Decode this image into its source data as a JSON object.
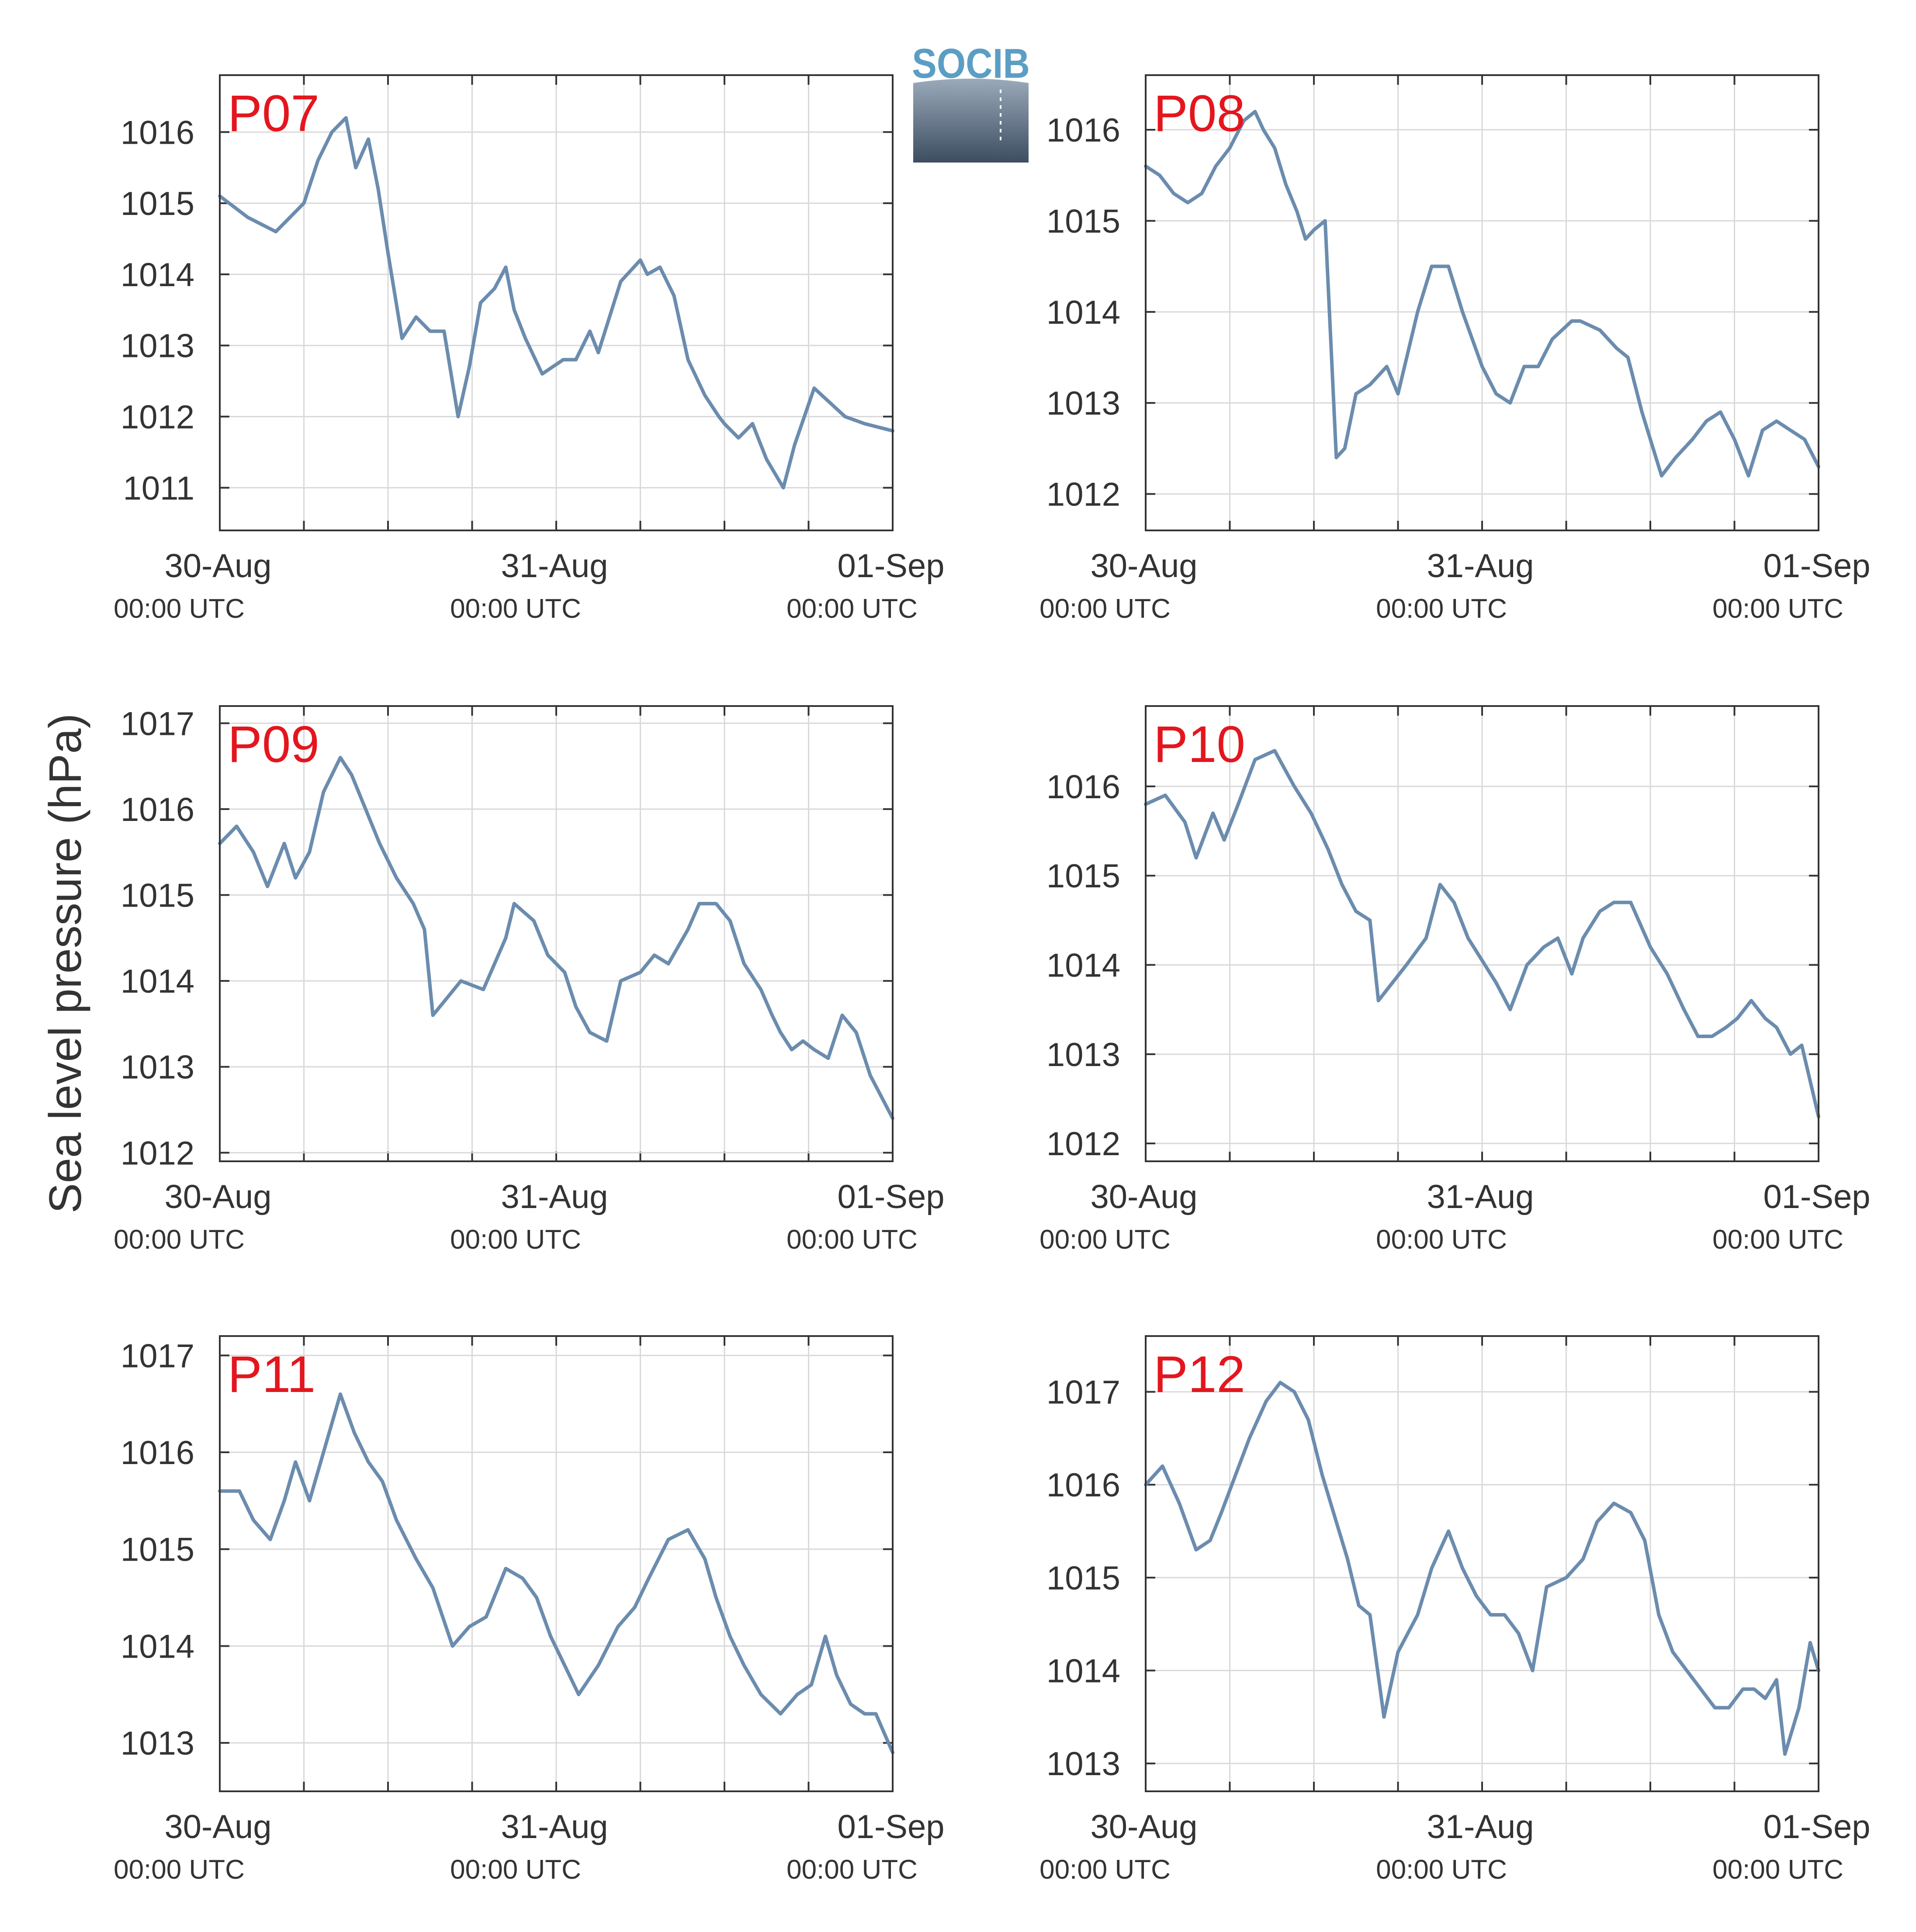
{
  "figure": {
    "ylabel": "Sea level pressure (hPa)",
    "logo_text": "SOCIB",
    "colors": {
      "line": "#6b8cae",
      "panel_label": "#e3161e",
      "grid": "#d9d9d9",
      "axis": "#333333"
    }
  },
  "chart_data": [
    {
      "type": "line",
      "title": "P07",
      "ylabel": "Sea level pressure (hPa)",
      "x_ticks": [
        "30-Aug",
        "31-Aug",
        "01-Sep"
      ],
      "x_tick_sub": [
        "00:00 UTC",
        "00:00 UTC",
        "00:00 UTC"
      ],
      "xlim": [
        0,
        48
      ],
      "ylim": [
        1010.4,
        1016.8
      ],
      "yticks": [
        1011,
        1012,
        1013,
        1014,
        1015,
        1016
      ],
      "x_minor_step": 6,
      "series": [
        {
          "x": [
            0,
            2,
            4,
            6,
            7,
            8,
            9,
            9.7,
            10.6,
            11.3,
            12,
            13,
            14,
            15,
            16,
            17,
            17.8,
            18.6,
            19.6,
            20.4,
            21,
            21.8,
            23,
            24.5,
            25.4,
            26.4,
            27,
            28.6,
            30,
            30.5,
            31.4,
            32.4,
            33.4,
            34.6,
            35.6,
            36,
            37,
            38,
            39,
            40.2,
            41,
            42.4,
            43.5,
            44.6,
            46,
            48
          ],
          "y": [
            1015.1,
            1014.8,
            1014.6,
            1015.0,
            1015.6,
            1016.0,
            1016.2,
            1015.5,
            1015.9,
            1015.2,
            1014.3,
            1013.1,
            1013.4,
            1013.2,
            1013.2,
            1012.0,
            1012.7,
            1013.6,
            1013.8,
            1014.1,
            1013.5,
            1013.1,
            1012.6,
            1012.8,
            1012.8,
            1013.2,
            1012.9,
            1013.9,
            1014.2,
            1014.0,
            1014.1,
            1013.7,
            1012.8,
            1012.3,
            1012.0,
            1011.9,
            1011.7,
            1011.9,
            1011.4,
            1011.0,
            1011.6,
            1012.4,
            1012.2,
            1012.0,
            1011.9,
            1011.8
          ]
        }
      ]
    },
    {
      "type": "line",
      "title": "P08",
      "ylabel": "Sea level pressure (hPa)",
      "x_ticks": [
        "30-Aug",
        "31-Aug",
        "01-Sep"
      ],
      "x_tick_sub": [
        "00:00 UTC",
        "00:00 UTC",
        "00:00 UTC"
      ],
      "xlim": [
        0,
        48
      ],
      "ylim": [
        1011.6,
        1016.6
      ],
      "yticks": [
        1012,
        1013,
        1014,
        1015,
        1016
      ],
      "x_minor_step": 6,
      "series": [
        {
          "x": [
            0,
            1,
            2,
            3,
            4,
            5,
            6,
            7,
            7.8,
            8.4,
            9.2,
            10,
            10.8,
            11.4,
            12,
            12.8,
            13.6,
            14.2,
            15,
            16,
            17.2,
            18,
            19.4,
            20.4,
            21.6,
            22.6,
            24,
            25,
            26,
            27,
            28,
            29,
            30.4,
            31,
            32.4,
            33.6,
            34.4,
            35.4,
            36,
            36.8,
            37.8,
            39,
            40,
            41,
            42,
            43,
            44,
            45,
            46,
            47,
            48
          ],
          "y": [
            1015.6,
            1015.5,
            1015.3,
            1015.2,
            1015.3,
            1015.6,
            1015.8,
            1016.1,
            1016.2,
            1016.0,
            1015.8,
            1015.4,
            1015.1,
            1014.8,
            1014.9,
            1015.0,
            1012.4,
            1012.5,
            1013.1,
            1013.2,
            1013.4,
            1013.1,
            1014.0,
            1014.5,
            1014.5,
            1014.0,
            1013.4,
            1013.1,
            1013.0,
            1013.4,
            1013.4,
            1013.7,
            1013.9,
            1013.9,
            1013.8,
            1013.6,
            1013.5,
            1012.9,
            1012.6,
            1012.2,
            1012.4,
            1012.6,
            1012.8,
            1012.9,
            1012.6,
            1012.2,
            1012.7,
            1012.8,
            1012.7,
            1012.6,
            1012.3
          ]
        }
      ]
    },
    {
      "type": "line",
      "title": "P09",
      "ylabel": "Sea level pressure (hPa)",
      "x_ticks": [
        "30-Aug",
        "31-Aug",
        "01-Sep"
      ],
      "x_tick_sub": [
        "00:00 UTC",
        "00:00 UTC",
        "00:00 UTC"
      ],
      "xlim": [
        0,
        48
      ],
      "ylim": [
        1011.9,
        1017.2
      ],
      "yticks": [
        1012,
        1013,
        1014,
        1015,
        1016,
        1017
      ],
      "x_minor_step": 6,
      "series": [
        {
          "x": [
            0,
            1.2,
            2.4,
            3.4,
            4.6,
            5.4,
            6.4,
            7.4,
            8.6,
            9.4,
            10.4,
            11.4,
            12.6,
            13.8,
            14.6,
            15.2,
            16.2,
            17.2,
            18.8,
            20.4,
            21,
            22.4,
            23.4,
            24.6,
            25.4,
            26.4,
            27.6,
            28.6,
            30,
            31,
            32,
            33.4,
            34.2,
            35.4,
            36.4,
            37.4,
            38.6,
            39.4,
            40,
            40.8,
            41.6,
            42.4,
            43.4,
            44.4,
            45.4,
            46.4,
            48
          ],
          "y": [
            1015.6,
            1015.8,
            1015.5,
            1015.1,
            1015.6,
            1015.2,
            1015.5,
            1016.2,
            1016.6,
            1016.4,
            1016.0,
            1015.6,
            1015.2,
            1014.9,
            1014.6,
            1013.6,
            1013.8,
            1014.0,
            1013.9,
            1014.5,
            1014.9,
            1014.7,
            1014.3,
            1014.1,
            1013.7,
            1013.4,
            1013.3,
            1014.0,
            1014.1,
            1014.3,
            1014.2,
            1014.6,
            1014.9,
            1014.9,
            1014.7,
            1014.2,
            1013.9,
            1013.6,
            1013.4,
            1013.2,
            1013.3,
            1013.2,
            1013.1,
            1013.6,
            1013.4,
            1012.9,
            1012.4
          ]
        }
      ]
    },
    {
      "type": "line",
      "title": "P10",
      "ylabel": "Sea level pressure (hPa)",
      "x_ticks": [
        "30-Aug",
        "31-Aug",
        "01-Sep"
      ],
      "x_tick_sub": [
        "00:00 UTC",
        "00:00 UTC",
        "00:00 UTC"
      ],
      "xlim": [
        0,
        48
      ],
      "ylim": [
        1011.8,
        1016.9
      ],
      "yticks": [
        1012,
        1013,
        1014,
        1015,
        1016
      ],
      "x_minor_step": 6,
      "series": [
        {
          "x": [
            0,
            1.4,
            2.8,
            3.6,
            4.8,
            5.6,
            6.6,
            7.8,
            9.2,
            10.6,
            11.8,
            13,
            14,
            15,
            16,
            16.6,
            17.6,
            18.6,
            20,
            21,
            22,
            23,
            24.2,
            25,
            26,
            27.2,
            28.4,
            29.4,
            30.4,
            31.2,
            32.4,
            33.4,
            34.6,
            36,
            37.2,
            38.4,
            39.4,
            40.4,
            41.4,
            42.2,
            43.2,
            44.2,
            45,
            46,
            46.8,
            48
          ],
          "y": [
            1015.8,
            1015.9,
            1015.6,
            1015.2,
            1015.7,
            1015.4,
            1015.8,
            1016.3,
            1016.4,
            1016.0,
            1015.7,
            1015.3,
            1014.9,
            1014.6,
            1014.5,
            1013.6,
            1013.8,
            1014.0,
            1014.3,
            1014.9,
            1014.7,
            1014.3,
            1014.0,
            1013.8,
            1013.5,
            1014.0,
            1014.2,
            1014.3,
            1013.9,
            1014.3,
            1014.6,
            1014.7,
            1014.7,
            1014.2,
            1013.9,
            1013.5,
            1013.2,
            1013.2,
            1013.3,
            1013.4,
            1013.6,
            1013.4,
            1013.3,
            1013.0,
            1013.1,
            1012.3
          ]
        }
      ]
    },
    {
      "type": "line",
      "title": "P11",
      "ylabel": "Sea level pressure (hPa)",
      "x_ticks": [
        "30-Aug",
        "31-Aug",
        "01-Sep"
      ],
      "x_tick_sub": [
        "00:00 UTC",
        "00:00 UTC",
        "00:00 UTC"
      ],
      "xlim": [
        0,
        48
      ],
      "ylim": [
        1012.5,
        1017.2
      ],
      "yticks": [
        1013,
        1014,
        1015,
        1016,
        1017
      ],
      "x_minor_step": 6,
      "series": [
        {
          "x": [
            0,
            1.4,
            2.4,
            3.6,
            4.6,
            5.4,
            6.4,
            7.4,
            8.6,
            9.6,
            10.6,
            11.6,
            12.6,
            14,
            15.2,
            16.6,
            17.8,
            19,
            20.4,
            21.6,
            22.6,
            23.6,
            24.6,
            25.6,
            27,
            28.4,
            29.6,
            30.6,
            32,
            33.4,
            34.6,
            35.4,
            36.4,
            37.4,
            38.6,
            40,
            41.2,
            42.2,
            43.2,
            44,
            45,
            46,
            46.8,
            48
          ],
          "y": [
            1015.6,
            1015.6,
            1015.3,
            1015.1,
            1015.5,
            1015.9,
            1015.5,
            1016.0,
            1016.6,
            1016.2,
            1015.9,
            1015.7,
            1015.3,
            1014.9,
            1014.6,
            1014.0,
            1014.2,
            1014.3,
            1014.8,
            1014.7,
            1014.5,
            1014.1,
            1013.8,
            1013.5,
            1013.8,
            1014.2,
            1014.4,
            1014.7,
            1015.1,
            1015.2,
            1014.9,
            1014.5,
            1014.1,
            1013.8,
            1013.5,
            1013.3,
            1013.5,
            1013.6,
            1014.1,
            1013.7,
            1013.4,
            1013.3,
            1013.3,
            1012.9
          ]
        }
      ]
    },
    {
      "type": "line",
      "title": "P12",
      "ylabel": "Sea level pressure (hPa)",
      "x_ticks": [
        "30-Aug",
        "31-Aug",
        "01-Sep"
      ],
      "x_tick_sub": [
        "00:00 UTC",
        "00:00 UTC",
        "00:00 UTC"
      ],
      "xlim": [
        0,
        48
      ],
      "ylim": [
        1012.7,
        1017.6
      ],
      "yticks": [
        1013,
        1014,
        1015,
        1016,
        1017
      ],
      "x_minor_step": 6,
      "series": [
        {
          "x": [
            0,
            1.2,
            2.4,
            3.6,
            4.6,
            5.4,
            6.4,
            7.4,
            8.6,
            9.6,
            10.6,
            11.6,
            12.6,
            13.6,
            14.4,
            15.2,
            16,
            17,
            18,
            19.4,
            20.4,
            21.6,
            22.6,
            23.6,
            24.6,
            25.6,
            26.6,
            27.6,
            28.6,
            30,
            31.2,
            32.2,
            33.4,
            34.6,
            35.6,
            36.6,
            37.6,
            38.6,
            39.6,
            40.6,
            41.6,
            42.6,
            43.4,
            44.2,
            45,
            45.6,
            46.6,
            47.4,
            48
          ],
          "y": [
            1016.0,
            1016.2,
            1015.8,
            1015.3,
            1015.4,
            1015.7,
            1016.1,
            1016.5,
            1016.9,
            1017.1,
            1017.0,
            1016.7,
            1016.1,
            1015.6,
            1015.2,
            1014.7,
            1014.6,
            1013.5,
            1014.2,
            1014.6,
            1015.1,
            1015.5,
            1015.1,
            1014.8,
            1014.6,
            1014.6,
            1014.4,
            1014.0,
            1014.9,
            1015.0,
            1015.2,
            1015.6,
            1015.8,
            1015.7,
            1015.4,
            1014.6,
            1014.2,
            1014.0,
            1013.8,
            1013.6,
            1013.6,
            1013.8,
            1013.8,
            1013.7,
            1013.9,
            1013.1,
            1013.6,
            1014.3,
            1014.0
          ]
        }
      ]
    }
  ]
}
